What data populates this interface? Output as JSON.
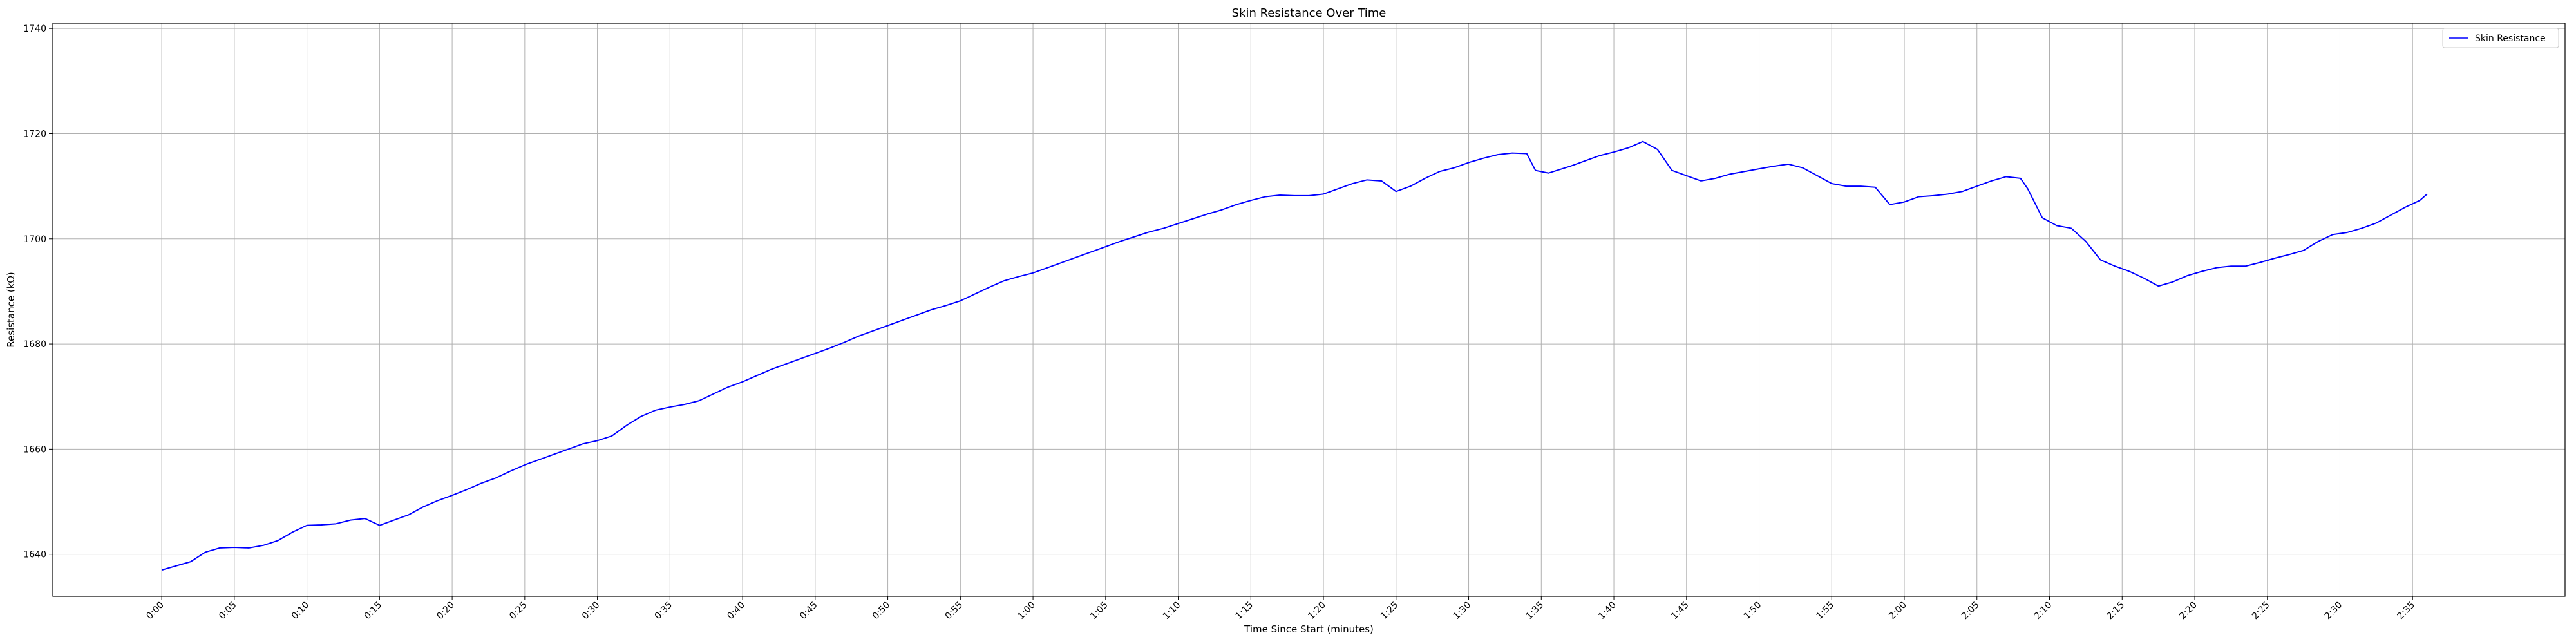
{
  "chart_data": {
    "type": "line",
    "title": "Skin Resistance Over Time",
    "xlabel": "Time Since Start (minutes)",
    "ylabel": "Resistance (kΩ)",
    "x_unit": "minutes",
    "xlim": [
      -7.5,
      165.5
    ],
    "ylim": [
      1632,
      1741
    ],
    "x_ticks": [
      0,
      5,
      10,
      15,
      20,
      25,
      30,
      35,
      40,
      45,
      50,
      55,
      60,
      65,
      70,
      75,
      80,
      85,
      90,
      95,
      100,
      105,
      110,
      115,
      120,
      125,
      130,
      135,
      140,
      145,
      150,
      155
    ],
    "x_tick_labels": [
      "0:00",
      "0:05",
      "0:10",
      "0:15",
      "0:20",
      "0:25",
      "0:30",
      "0:35",
      "0:40",
      "0:45",
      "0:50",
      "0:55",
      "1:00",
      "1:05",
      "1:10",
      "1:15",
      "1:20",
      "1:25",
      "1:30",
      "1:35",
      "1:40",
      "1:45",
      "1:50",
      "1:55",
      "2:00",
      "2:05",
      "2:10",
      "2:15",
      "2:20",
      "2:25",
      "2:30",
      "2:35"
    ],
    "y_ticks": [
      1640,
      1660,
      1680,
      1700,
      1720,
      1740
    ],
    "grid": true,
    "legend_position": "top-right",
    "series": [
      {
        "name": "Skin Resistance",
        "color": "#0000ff",
        "points": [
          [
            0.0,
            1637.0
          ],
          [
            1.0,
            1637.8
          ],
          [
            2.0,
            1638.6
          ],
          [
            3.0,
            1640.4
          ],
          [
            4.0,
            1641.2
          ],
          [
            5.0,
            1641.3
          ],
          [
            6.0,
            1641.2
          ],
          [
            7.0,
            1641.7
          ],
          [
            8.0,
            1642.6
          ],
          [
            9.0,
            1644.2
          ],
          [
            10.0,
            1645.5
          ],
          [
            11.0,
            1645.6
          ],
          [
            12.0,
            1645.8
          ],
          [
            13.0,
            1646.5
          ],
          [
            14.0,
            1646.8
          ],
          [
            15.0,
            1645.5
          ],
          [
            16.0,
            1646.5
          ],
          [
            17.0,
            1647.5
          ],
          [
            18.0,
            1649.0
          ],
          [
            19.0,
            1650.2
          ],
          [
            20.0,
            1651.2
          ],
          [
            21.0,
            1652.3
          ],
          [
            22.0,
            1653.5
          ],
          [
            23.0,
            1654.5
          ],
          [
            24.0,
            1655.8
          ],
          [
            25.0,
            1657.0
          ],
          [
            26.0,
            1658.0
          ],
          [
            27.0,
            1659.0
          ],
          [
            28.0,
            1660.0
          ],
          [
            29.0,
            1661.0
          ],
          [
            30.0,
            1661.6
          ],
          [
            31.0,
            1662.5
          ],
          [
            32.0,
            1664.5
          ],
          [
            33.0,
            1666.2
          ],
          [
            34.0,
            1667.4
          ],
          [
            35.0,
            1668.0
          ],
          [
            36.0,
            1668.5
          ],
          [
            37.0,
            1669.2
          ],
          [
            38.0,
            1670.5
          ],
          [
            39.0,
            1671.8
          ],
          [
            40.0,
            1672.8
          ],
          [
            41.0,
            1674.0
          ],
          [
            42.0,
            1675.2
          ],
          [
            43.0,
            1676.2
          ],
          [
            44.0,
            1677.2
          ],
          [
            45.0,
            1678.2
          ],
          [
            46.0,
            1679.2
          ],
          [
            47.0,
            1680.3
          ],
          [
            48.0,
            1681.5
          ],
          [
            49.0,
            1682.5
          ],
          [
            50.0,
            1683.5
          ],
          [
            51.0,
            1684.5
          ],
          [
            52.0,
            1685.5
          ],
          [
            53.0,
            1686.5
          ],
          [
            54.0,
            1687.3
          ],
          [
            55.0,
            1688.2
          ],
          [
            56.0,
            1689.5
          ],
          [
            57.0,
            1690.8
          ],
          [
            58.0,
            1692.0
          ],
          [
            59.0,
            1692.8
          ],
          [
            60.0,
            1693.5
          ],
          [
            61.0,
            1694.5
          ],
          [
            62.0,
            1695.5
          ],
          [
            63.0,
            1696.5
          ],
          [
            64.0,
            1697.5
          ],
          [
            65.0,
            1698.5
          ],
          [
            66.0,
            1699.5
          ],
          [
            67.0,
            1700.4
          ],
          [
            68.0,
            1701.3
          ],
          [
            69.0,
            1702.0
          ],
          [
            70.0,
            1702.9
          ],
          [
            71.0,
            1703.8
          ],
          [
            72.0,
            1704.7
          ],
          [
            73.0,
            1705.5
          ],
          [
            74.0,
            1706.5
          ],
          [
            75.0,
            1707.3
          ],
          [
            76.0,
            1708.0
          ],
          [
            77.0,
            1708.3
          ],
          [
            78.0,
            1708.2
          ],
          [
            79.0,
            1708.2
          ],
          [
            80.0,
            1708.5
          ],
          [
            81.0,
            1709.5
          ],
          [
            82.0,
            1710.5
          ],
          [
            83.0,
            1711.2
          ],
          [
            84.0,
            1711.0
          ],
          [
            85.0,
            1709.0
          ],
          [
            86.0,
            1710.0
          ],
          [
            87.0,
            1711.5
          ],
          [
            88.0,
            1712.8
          ],
          [
            89.0,
            1713.5
          ],
          [
            90.0,
            1714.5
          ],
          [
            91.0,
            1715.3
          ],
          [
            92.0,
            1716.0
          ],
          [
            93.0,
            1716.3
          ],
          [
            94.0,
            1716.2
          ],
          [
            94.6,
            1713.0
          ],
          [
            95.5,
            1712.5
          ],
          [
            97.0,
            1713.8
          ],
          [
            98.0,
            1714.8
          ],
          [
            99.0,
            1715.8
          ],
          [
            100.0,
            1716.5
          ],
          [
            101.0,
            1717.3
          ],
          [
            102.0,
            1718.5
          ],
          [
            103.0,
            1717.0
          ],
          [
            104.0,
            1713.0
          ],
          [
            105.0,
            1712.0
          ],
          [
            106.0,
            1711.0
          ],
          [
            107.0,
            1711.5
          ],
          [
            108.0,
            1712.3
          ],
          [
            109.0,
            1712.8
          ],
          [
            110.0,
            1713.3
          ],
          [
            111.0,
            1713.8
          ],
          [
            112.0,
            1714.2
          ],
          [
            113.0,
            1713.5
          ],
          [
            114.0,
            1712.0
          ],
          [
            115.0,
            1710.5
          ],
          [
            116.0,
            1710.0
          ],
          [
            117.0,
            1710.0
          ],
          [
            118.0,
            1709.8
          ],
          [
            119.0,
            1706.5
          ],
          [
            120.0,
            1707.0
          ],
          [
            121.0,
            1708.0
          ],
          [
            122.0,
            1708.2
          ],
          [
            123.0,
            1708.5
          ],
          [
            124.0,
            1709.0
          ],
          [
            125.0,
            1710.0
          ],
          [
            126.0,
            1711.0
          ],
          [
            127.0,
            1711.8
          ],
          [
            128.0,
            1711.5
          ],
          [
            128.5,
            1709.5
          ],
          [
            129.5,
            1704.0
          ],
          [
            130.5,
            1702.5
          ],
          [
            131.5,
            1702.0
          ],
          [
            132.5,
            1699.5
          ],
          [
            133.5,
            1696.0
          ],
          [
            134.5,
            1694.8
          ],
          [
            135.5,
            1693.8
          ],
          [
            136.5,
            1692.5
          ],
          [
            137.5,
            1691.0
          ],
          [
            138.5,
            1691.8
          ],
          [
            139.5,
            1693.0
          ],
          [
            140.5,
            1693.8
          ],
          [
            141.5,
            1694.5
          ],
          [
            142.5,
            1694.8
          ],
          [
            143.5,
            1694.8
          ],
          [
            144.5,
            1695.5
          ],
          [
            145.5,
            1696.3
          ],
          [
            146.5,
            1697.0
          ],
          [
            147.5,
            1697.8
          ],
          [
            148.5,
            1699.5
          ],
          [
            149.5,
            1700.8
          ],
          [
            150.5,
            1701.2
          ],
          [
            151.5,
            1702.0
          ],
          [
            152.5,
            1703.0
          ],
          [
            153.5,
            1704.5
          ],
          [
            154.5,
            1706.0
          ],
          [
            155.5,
            1707.3
          ],
          [
            156.0,
            1708.5
          ]
        ]
      }
    ]
  }
}
